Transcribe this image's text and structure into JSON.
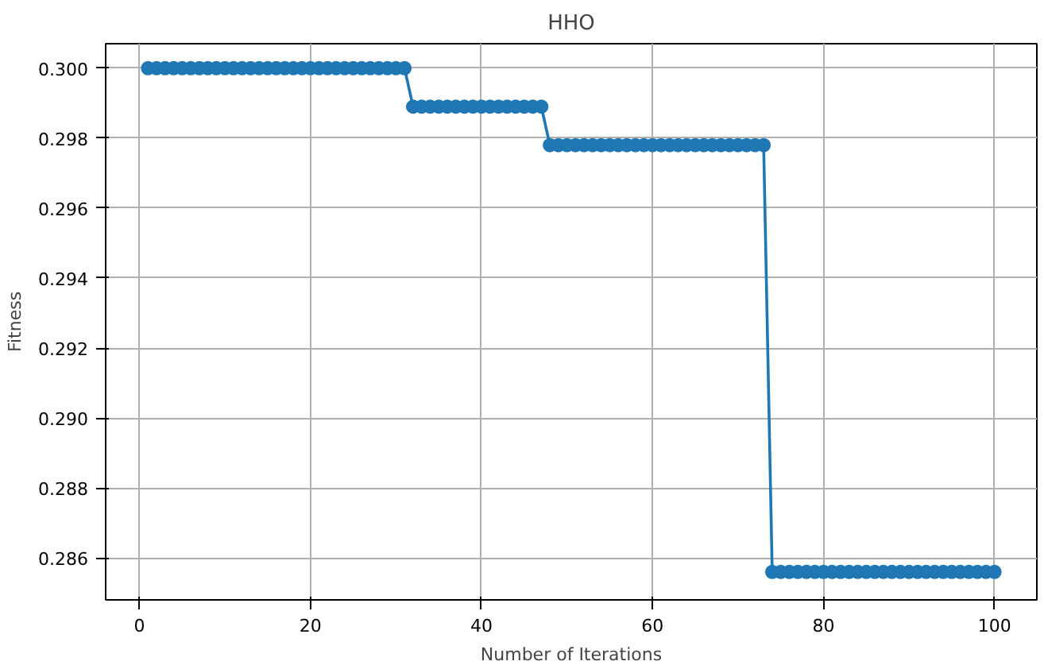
{
  "chart_data": {
    "type": "line",
    "title": "HHO",
    "xlabel": "Number of Iterations",
    "ylabel": "Fitness",
    "x": [
      1,
      2,
      3,
      4,
      5,
      6,
      7,
      8,
      9,
      10,
      11,
      12,
      13,
      14,
      15,
      16,
      17,
      18,
      19,
      20,
      21,
      22,
      23,
      24,
      25,
      26,
      27,
      28,
      29,
      30,
      31,
      32,
      33,
      34,
      35,
      36,
      37,
      38,
      39,
      40,
      41,
      42,
      43,
      44,
      45,
      46,
      47,
      48,
      49,
      50,
      51,
      52,
      53,
      54,
      55,
      56,
      57,
      58,
      59,
      60,
      61,
      62,
      63,
      64,
      65,
      66,
      67,
      68,
      69,
      70,
      71,
      72,
      73,
      74,
      75,
      76,
      77,
      78,
      79,
      80,
      81,
      82,
      83,
      84,
      85,
      86,
      87,
      88,
      89,
      90,
      91,
      92,
      93,
      94,
      95,
      96,
      97,
      98,
      99,
      100
    ],
    "series": [
      {
        "color": "#1f77b4",
        "values": [
          0.3,
          0.3,
          0.3,
          0.3,
          0.3,
          0.3,
          0.3,
          0.3,
          0.3,
          0.3,
          0.3,
          0.3,
          0.3,
          0.3,
          0.3,
          0.3,
          0.3,
          0.3,
          0.3,
          0.3,
          0.3,
          0.3,
          0.3,
          0.3,
          0.3,
          0.3,
          0.3,
          0.3,
          0.3,
          0.3,
          0.3,
          0.2989,
          0.2989,
          0.2989,
          0.2989,
          0.2989,
          0.2989,
          0.2989,
          0.2989,
          0.2989,
          0.2989,
          0.2989,
          0.2989,
          0.2989,
          0.2989,
          0.2989,
          0.2989,
          0.2978,
          0.2978,
          0.2978,
          0.2978,
          0.2978,
          0.2978,
          0.2978,
          0.2978,
          0.2978,
          0.2978,
          0.2978,
          0.2978,
          0.2978,
          0.2978,
          0.2978,
          0.2978,
          0.2978,
          0.2978,
          0.2978,
          0.2978,
          0.2978,
          0.2978,
          0.2978,
          0.2978,
          0.2978,
          0.2978,
          0.2856,
          0.2856,
          0.2856,
          0.2856,
          0.2856,
          0.2856,
          0.2856,
          0.2856,
          0.2856,
          0.2856,
          0.2856,
          0.2856,
          0.2856,
          0.2856,
          0.2856,
          0.2856,
          0.2856,
          0.2856,
          0.2856,
          0.2856,
          0.2856,
          0.2856,
          0.2856,
          0.2856,
          0.2856,
          0.2856,
          0.2856
        ]
      }
    ],
    "xlim": [
      -3.95,
      104.95
    ],
    "ylim": [
      0.2848,
      0.3007
    ],
    "xticks": [
      0,
      20,
      40,
      60,
      80,
      100
    ],
    "yticks": [
      0.286,
      0.288,
      {
        "value": 0.29,
        "label": "0.290"
      },
      0.292,
      0.294,
      0.296,
      0.298,
      {
        "value": 0.3,
        "label": "0.300"
      }
    ],
    "grid": true,
    "marker": "circle",
    "line_style": "solid"
  }
}
